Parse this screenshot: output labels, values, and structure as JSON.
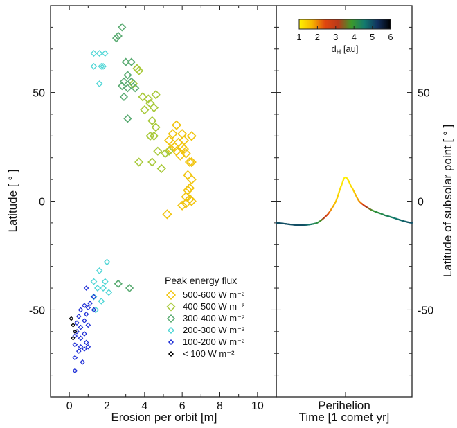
{
  "chart_data": [
    {
      "type": "scatter",
      "panel": "left",
      "xlabel": "Erosion per orbit [m]",
      "ylabel": "Latitude [ ° ]",
      "xlim": [
        -1,
        11
      ],
      "ylim": [
        -90,
        90
      ],
      "xticks": [
        0,
        2,
        4,
        6,
        8,
        10
      ],
      "yticks": [
        50,
        0,
        -50
      ],
      "legend_title": "Peak energy flux",
      "legend_placement": "lower-right",
      "series": [
        {
          "name": "500-600 W m⁻²",
          "color": "#f1c40f",
          "marker_size": 12,
          "points": [
            [
              5.7,
              35
            ],
            [
              5.5,
              31
            ],
            [
              6.0,
              31
            ],
            [
              6.5,
              30
            ],
            [
              5.3,
              28
            ],
            [
              5.8,
              27
            ],
            [
              6.1,
              28
            ],
            [
              5.6,
              25
            ],
            [
              5.4,
              24
            ],
            [
              6.0,
              25
            ],
            [
              6.2,
              22
            ],
            [
              5.9,
              21
            ],
            [
              5.7,
              23
            ],
            [
              6.4,
              18
            ],
            [
              6.5,
              18
            ],
            [
              6.3,
              12
            ],
            [
              6.5,
              10
            ],
            [
              6.4,
              6
            ],
            [
              6.3,
              5
            ],
            [
              6.2,
              2
            ],
            [
              6.4,
              1
            ],
            [
              6.5,
              0
            ],
            [
              6.0,
              -2
            ],
            [
              6.2,
              -1
            ],
            [
              5.2,
              -6
            ],
            [
              6.1,
              24
            ]
          ]
        },
        {
          "name": "400-500 W m⁻²",
          "color": "#a8c93a",
          "marker_size": 11,
          "points": [
            [
              3.6,
              61
            ],
            [
              3.7,
              60
            ],
            [
              3.4,
              54
            ],
            [
              3.9,
              48
            ],
            [
              4.2,
              47
            ],
            [
              4.6,
              49
            ],
            [
              4.3,
              45
            ],
            [
              4.5,
              43
            ],
            [
              4.0,
              42
            ],
            [
              4.4,
              37
            ],
            [
              4.6,
              34
            ],
            [
              4.3,
              30
            ],
            [
              4.5,
              30
            ],
            [
              4.7,
              23
            ],
            [
              5.3,
              23
            ],
            [
              5.1,
              22
            ],
            [
              3.7,
              18
            ],
            [
              4.4,
              18
            ],
            [
              4.9,
              15
            ]
          ]
        },
        {
          "name": "300-400 W m⁻²",
          "color": "#5aab72",
          "marker_size": 10,
          "points": [
            [
              2.8,
              80
            ],
            [
              2.6,
              76
            ],
            [
              2.5,
              75
            ],
            [
              3.3,
              64
            ],
            [
              3.0,
              64
            ],
            [
              3.1,
              58
            ],
            [
              3.3,
              55
            ],
            [
              2.9,
              55
            ],
            [
              2.8,
              53
            ],
            [
              3.1,
              52
            ],
            [
              3.5,
              52
            ],
            [
              2.9,
              48
            ],
            [
              3.1,
              38
            ],
            [
              2.6,
              -38
            ],
            [
              3.2,
              -40
            ]
          ]
        },
        {
          "name": "200-300 W m⁻²",
          "color": "#4fd6d6",
          "marker_size": 8,
          "points": [
            [
              1.3,
              68
            ],
            [
              1.6,
              68
            ],
            [
              1.9,
              68
            ],
            [
              1.3,
              62
            ],
            [
              1.7,
              62
            ],
            [
              1.8,
              62
            ],
            [
              1.6,
              54
            ],
            [
              2.0,
              -28
            ],
            [
              1.6,
              -32
            ],
            [
              1.3,
              -37
            ],
            [
              1.9,
              -37
            ],
            [
              1.5,
              -40
            ],
            [
              1.8,
              -40
            ],
            [
              2.1,
              -42
            ],
            [
              1.3,
              -44
            ],
            [
              1.7,
              -46
            ],
            [
              1.4,
              -50
            ]
          ]
        },
        {
          "name": "100-200 W m⁻²",
          "color": "#1f2fd6",
          "marker_size": 6,
          "points": [
            [
              0.9,
              -40
            ],
            [
              1.3,
              -44
            ],
            [
              1.1,
              -47
            ],
            [
              0.8,
              -48
            ],
            [
              1.0,
              -49
            ],
            [
              1.3,
              -50
            ],
            [
              0.6,
              -50
            ],
            [
              0.9,
              -52
            ],
            [
              0.5,
              -53
            ],
            [
              0.8,
              -55
            ],
            [
              0.4,
              -56
            ],
            [
              1.0,
              -57
            ],
            [
              0.6,
              -58
            ],
            [
              0.4,
              -60
            ],
            [
              0.8,
              -61
            ],
            [
              0.3,
              -62
            ],
            [
              0.6,
              -63
            ],
            [
              0.9,
              -65
            ],
            [
              0.3,
              -66
            ],
            [
              0.6,
              -67
            ],
            [
              1.0,
              -67
            ],
            [
              0.8,
              -68
            ],
            [
              0.5,
              -69
            ],
            [
              0.3,
              -72
            ],
            [
              0.7,
              -74
            ],
            [
              0.3,
              -78
            ]
          ]
        },
        {
          "name": "< 100 W m⁻²",
          "color": "#000000",
          "marker_size": 5,
          "points": [
            [
              0.1,
              -54
            ],
            [
              0.2,
              -57
            ],
            [
              0.3,
              -60
            ],
            [
              0.2,
              -63
            ]
          ]
        }
      ]
    },
    {
      "type": "line",
      "panel": "right",
      "xlabel": "Time [1 comet yr]",
      "x_marker_label": "Perihelion",
      "ylabel": "Latitude of subsolar point [ ° ]",
      "ylim": [
        -90,
        90
      ],
      "yticks": [
        50,
        0,
        -50
      ],
      "colorbar": {
        "label": "d",
        "label_sub": "H",
        "label_rest": " [au]",
        "range": [
          1,
          6
        ],
        "ticks": [
          "1",
          "2",
          "3",
          "4",
          "5",
          "6"
        ],
        "stops": [
          "#fff200",
          "#f5b400",
          "#e0450f",
          "#b83a1a",
          "#3c9a2a",
          "#137a6e",
          "#12305e",
          "#000000"
        ]
      },
      "curve": {
        "description_points": [
          [
            0,
            -10
          ],
          [
            0.17,
            -11
          ],
          [
            0.3,
            -10
          ],
          [
            0.38,
            -6
          ],
          [
            0.44,
            0
          ],
          [
            0.485,
            8
          ],
          [
            0.51,
            11
          ],
          [
            0.55,
            7
          ],
          [
            0.61,
            0
          ],
          [
            0.7,
            -4
          ],
          [
            0.8,
            -6.5
          ],
          [
            1.0,
            -10
          ]
        ],
        "color_by_dH": [
          [
            0,
            5
          ],
          [
            0.2,
            5
          ],
          [
            0.32,
            4
          ],
          [
            0.36,
            3
          ],
          [
            0.4,
            2
          ],
          [
            0.46,
            1.3
          ],
          [
            0.51,
            1
          ],
          [
            0.56,
            1.3
          ],
          [
            0.62,
            2
          ],
          [
            0.66,
            3
          ],
          [
            0.72,
            4
          ],
          [
            1.0,
            5
          ]
        ]
      }
    }
  ]
}
